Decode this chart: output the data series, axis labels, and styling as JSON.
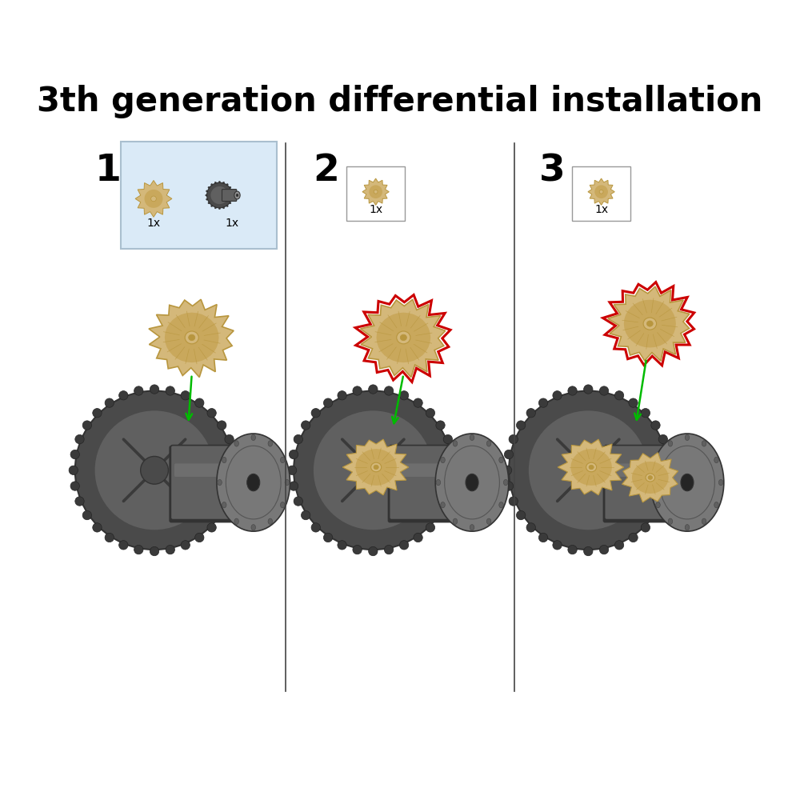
{
  "title": "3th generation differential installation",
  "title_fontsize": 30,
  "title_fontweight": "bold",
  "background_color": "#ffffff",
  "separator_color": "#444444",
  "separator_linewidth": 1.2,
  "step_number_fontsize": 34,
  "step_number_fontweight": "bold",
  "inset_box1_color": "#daeaf7",
  "inset_box1_border": "#aabfcf",
  "inset_box_border": "#999999",
  "green_arrow_color": "#00bb00",
  "red_outline_color": "#cc0000",
  "housing_dark": "#4a4a4a",
  "housing_medium": "#606060",
  "housing_light": "#787878",
  "housing_lighter": "#909090",
  "bevel_gear_color": "#d4b87a",
  "bevel_gear_shade": "#c9a85c",
  "bevel_gear_dark": "#b8963e",
  "count_label": "1x",
  "count_label_fontsize": 10
}
